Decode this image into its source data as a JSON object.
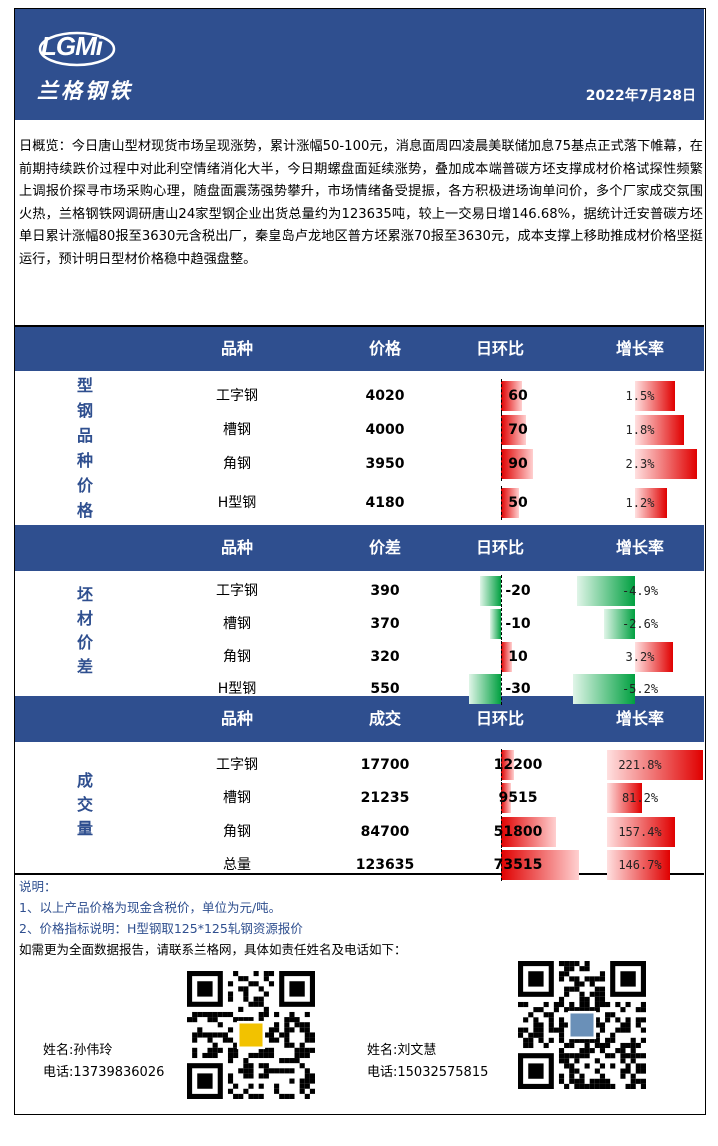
{
  "brand": {
    "logo_text": "LGMi",
    "logo_cn": "兰格钢铁"
  },
  "date": "2022年7月28日",
  "overview": "日概览：今日唐山型材现货市场呈现涨势，累计涨幅50-100元，消息面周四凌晨美联储加息75基点正式落下帷幕，在前期持续跌价过程中对此利空情绪消化大半，今日期螺盘面延续涨势，叠加成本端普碳方坯支撑成材价格试探性频繁上调报价探寻市场采购心理，随盘面震荡强势攀升，市场情绪备受提振，各方积极进场询单问价，多个厂家成交氛围火热，兰格钢铁网调研唐山24家型钢企业出货总量约为123635吨，较上一交易日增146.68%，据统计迁安普碳方坯单日累计涨幅80报至3630元含税出厂，秦皇岛卢龙地区普方坯累涨70报至3630元，成本支撑上移助推成材价格坚挺运行，预计明日型材价格稳中趋强盘整。",
  "sections": [
    {
      "label_chars": [
        "型",
        "钢",
        "品",
        "种",
        "价",
        "格"
      ],
      "headers": [
        "品种",
        "价格",
        "日环比",
        "增长率"
      ],
      "rows": [
        {
          "name": "工字钢",
          "value": "4020",
          "chg": "60",
          "chg_num": 60,
          "rate": "1.5%",
          "rate_num": 1.5
        },
        {
          "name": "槽钢",
          "value": "4000",
          "chg": "70",
          "chg_num": 70,
          "rate": "1.8%",
          "rate_num": 1.8
        },
        {
          "name": "角钢",
          "value": "3950",
          "chg": "90",
          "chg_num": 90,
          "rate": "2.3%",
          "rate_num": 2.3
        },
        {
          "name": "H型钢",
          "value": "4180",
          "chg": "50",
          "chg_num": 50,
          "rate": "1.2%",
          "rate_num": 1.2
        }
      ]
    },
    {
      "label_chars": [
        "坯",
        "材",
        "价",
        "差"
      ],
      "headers": [
        "品种",
        "价差",
        "日环比",
        "增长率"
      ],
      "rows": [
        {
          "name": "工字钢",
          "value": "390",
          "chg": "-20",
          "chg_num": -20,
          "rate": "-4.9%",
          "rate_num": -4.9
        },
        {
          "name": "槽钢",
          "value": "370",
          "chg": "-10",
          "chg_num": -10,
          "rate": "-2.6%",
          "rate_num": -2.6
        },
        {
          "name": "角钢",
          "value": "320",
          "chg": "10",
          "chg_num": 10,
          "rate": "3.2%",
          "rate_num": 3.2
        },
        {
          "name": "H型钢",
          "value": "550",
          "chg": "-30",
          "chg_num": -30,
          "rate": "-5.2%",
          "rate_num": -5.2
        }
      ]
    },
    {
      "label_chars": [
        "成",
        "交",
        "量"
      ],
      "headers": [
        "品种",
        "成交",
        "日环比",
        "增长率"
      ],
      "rows": [
        {
          "name": "工字钢",
          "value": "17700",
          "chg": "12200",
          "chg_num": 12200,
          "rate": "221.8%",
          "rate_num": 221.8
        },
        {
          "name": "槽钢",
          "value": "21235",
          "chg": "9515",
          "chg_num": 9515,
          "rate": "81.2%",
          "rate_num": 81.2
        },
        {
          "name": "角钢",
          "value": "84700",
          "chg": "51800",
          "chg_num": 51800,
          "rate": "157.4%",
          "rate_num": 157.4
        },
        {
          "name": "总量",
          "value": "123635",
          "chg": "73515",
          "chg_num": 73515,
          "rate": "146.7%",
          "rate_num": 146.7
        }
      ]
    }
  ],
  "notes": {
    "title": "说明：",
    "line1": "1、以上产品价格为现金含税价，单位为元/吨。",
    "line2": "2、价格指标说明：H型钢取125*125轧钢资源报价",
    "line3": "如需更为全面数据报告，请联系兰格网，具体如责任姓名及电话如下："
  },
  "contacts": [
    {
      "name": "姓名:孙伟玲",
      "phone": "电话:13739836026"
    },
    {
      "name": "姓名:刘文慧",
      "phone": "电话:15032575815"
    }
  ],
  "colors": {
    "header_blue": "#2f4f8f",
    "bar_red": "#e00000",
    "bar_green": "#00a040"
  }
}
